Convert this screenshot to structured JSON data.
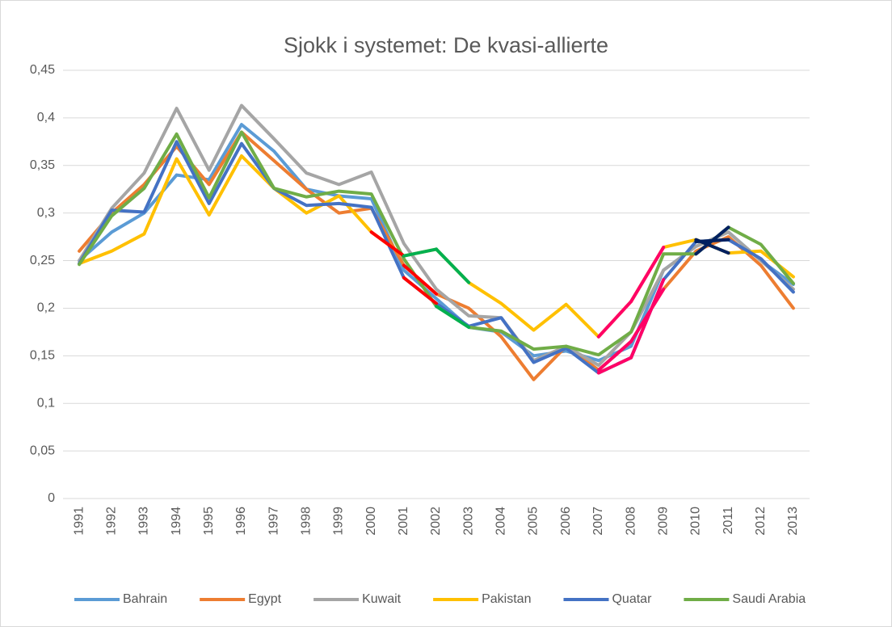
{
  "chart_data": {
    "type": "line",
    "title": "Sjokk i systemet: De kvasi-allierte",
    "categories": [
      "1991",
      "1992",
      "1993",
      "1994",
      "1995",
      "1996",
      "1997",
      "1998",
      "1999",
      "2000",
      "2001",
      "2002",
      "2003",
      "2004",
      "2005",
      "2006",
      "2007",
      "2008",
      "2009",
      "2010",
      "2011",
      "2012",
      "2013"
    ],
    "series": [
      {
        "name": "Bahrain",
        "color": "#5b9bd5",
        "values": [
          0.25,
          0.28,
          0.3,
          0.34,
          0.335,
          0.393,
          0.365,
          0.325,
          0.318,
          0.315,
          0.24,
          0.21,
          0.18,
          0.175,
          0.15,
          0.155,
          0.145,
          0.16,
          0.24,
          0.265,
          0.28,
          0.25,
          0.225
        ]
      },
      {
        "name": "Egypt",
        "color": "#ed7d31",
        "values": [
          0.26,
          0.3,
          0.33,
          0.37,
          0.33,
          0.385,
          0.355,
          0.325,
          0.3,
          0.305,
          0.245,
          0.215,
          0.2,
          0.17,
          0.125,
          0.16,
          0.135,
          0.165,
          0.22,
          0.26,
          0.275,
          0.245,
          0.2
        ],
        "highlights": [
          {
            "from": "2001",
            "to": "2002",
            "color": "#ff0000"
          },
          {
            "from": "2007",
            "to": "2008",
            "color": "#ff0066"
          },
          {
            "from": "2008",
            "to": "2009",
            "color": "#ff0066"
          }
        ]
      },
      {
        "name": "Kuwait",
        "color": "#a5a5a5",
        "values": [
          0.25,
          0.305,
          0.342,
          0.41,
          0.345,
          0.413,
          0.378,
          0.342,
          0.33,
          0.343,
          0.268,
          0.22,
          0.192,
          0.19,
          0.145,
          0.16,
          0.14,
          0.175,
          0.24,
          0.265,
          0.28,
          0.25,
          0.22
        ]
      },
      {
        "name": "Pakistan",
        "color": "#ffc000",
        "values": [
          0.247,
          0.26,
          0.278,
          0.357,
          0.298,
          0.36,
          0.326,
          0.3,
          0.318,
          0.28,
          0.255,
          0.262,
          0.227,
          0.205,
          0.177,
          0.204,
          0.17,
          0.207,
          0.264,
          0.272,
          0.258,
          0.26,
          0.233
        ],
        "highlights": [
          {
            "from": "2000",
            "to": "2001",
            "color": "#ff0000"
          },
          {
            "from": "2001",
            "to": "2002",
            "color": "#00b050"
          },
          {
            "from": "2002",
            "to": "2003",
            "color": "#00b050"
          },
          {
            "from": "2007",
            "to": "2008",
            "color": "#ff0066"
          },
          {
            "from": "2008",
            "to": "2009",
            "color": "#ff0066"
          },
          {
            "from": "2010",
            "to": "2011",
            "color": "#002060"
          }
        ]
      },
      {
        "name": "Quatar",
        "color": "#4472c4",
        "values": [
          0.247,
          0.303,
          0.301,
          0.375,
          0.31,
          0.373,
          0.326,
          0.308,
          0.31,
          0.306,
          0.232,
          0.205,
          0.181,
          0.19,
          0.143,
          0.158,
          0.132,
          0.148,
          0.23,
          0.27,
          0.272,
          0.252,
          0.217
        ],
        "highlights": [
          {
            "from": "2001",
            "to": "2002",
            "color": "#ff0000"
          },
          {
            "from": "2007",
            "to": "2008",
            "color": "#ff0066"
          },
          {
            "from": "2008",
            "to": "2009",
            "color": "#ff0066"
          },
          {
            "from": "2010",
            "to": "2011",
            "color": "#002060"
          }
        ]
      },
      {
        "name": "Saudi Arabia",
        "color": "#70ad47",
        "values": [
          0.246,
          0.297,
          0.326,
          0.383,
          0.316,
          0.385,
          0.326,
          0.317,
          0.323,
          0.32,
          0.252,
          0.202,
          0.18,
          0.176,
          0.157,
          0.16,
          0.151,
          0.175,
          0.257,
          0.257,
          0.285,
          0.267,
          0.226
        ],
        "highlights": [
          {
            "from": "2002",
            "to": "2003",
            "color": "#00b050"
          },
          {
            "from": "2010",
            "to": "2011",
            "color": "#002060"
          }
        ]
      }
    ],
    "ylim": [
      0,
      0.45
    ],
    "yticks": [
      0,
      {
        "value": 0.05,
        "label": "0,05"
      },
      {
        "value": 0.1,
        "label": "0,1"
      },
      {
        "value": 0.15,
        "label": "0,15"
      },
      {
        "value": 0.2,
        "label": "0,2"
      },
      {
        "value": 0.25,
        "label": "0,25"
      },
      {
        "value": 0.3,
        "label": "0,3"
      },
      {
        "value": 0.35,
        "label": "0,35"
      },
      {
        "value": 0.4,
        "label": "0,4"
      },
      {
        "value": 0.45,
        "label": "0,45"
      }
    ],
    "grid": true,
    "legend": "bottom"
  }
}
